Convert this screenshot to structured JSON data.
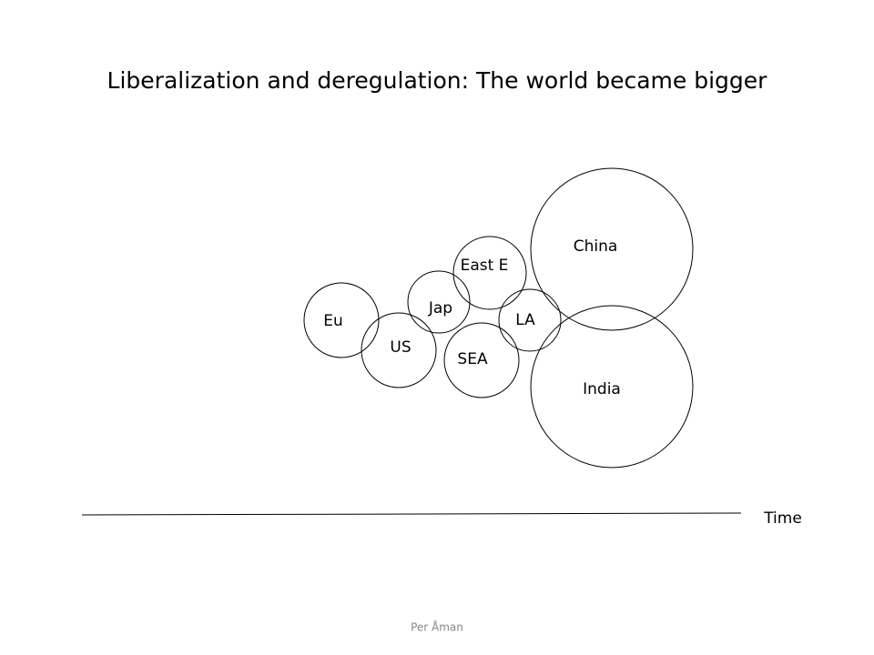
{
  "header": {
    "title": "Liberalization and deregulation: The world became bigger"
  },
  "nodes": [
    {
      "label": "Eu"
    },
    {
      "label": "US"
    },
    {
      "label": "Jap"
    },
    {
      "label": "East E"
    },
    {
      "label": "SEA"
    },
    {
      "label": "LA"
    },
    {
      "label": "China"
    },
    {
      "label": "India"
    }
  ],
  "axis": {
    "label": "Time"
  },
  "footer": {
    "author": "Per Åman"
  }
}
